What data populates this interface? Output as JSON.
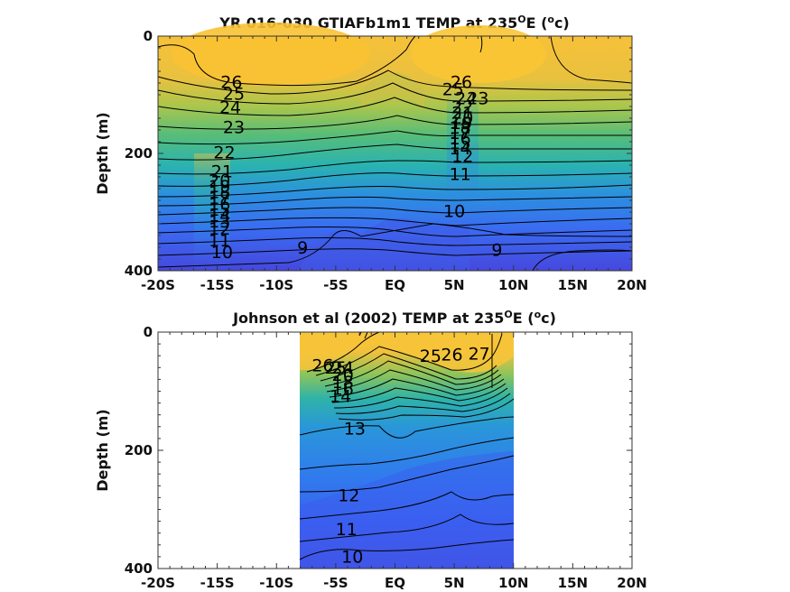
{
  "chart_data": [
    {
      "type": "contour",
      "title": "YR 016-030 GTIAFb1m1 TEMP at 235",
      "title_sup": "O",
      "title_mid": "E (",
      "title_unit_sup": "o",
      "title_end": "c)",
      "ylabel": "Depth (m)",
      "xlim": [
        -20,
        20
      ],
      "ylim": [
        0,
        400
      ],
      "y_reversed": true,
      "x_ticks": [
        -20,
        -15,
        -10,
        -5,
        0,
        5,
        10,
        15,
        20
      ],
      "x_tick_labels": [
        "-20S",
        "-15S",
        "-10S",
        "-5S",
        "EQ",
        "5N",
        "10N",
        "15N",
        "20N"
      ],
      "y_ticks": [
        0,
        200,
        400
      ],
      "y_tick_labels": [
        "0",
        "200",
        "400"
      ],
      "data_extent_x": [
        -20,
        20
      ],
      "contour_labels": [
        {
          "x": -13.8,
          "y": 80,
          "text": "26"
        },
        {
          "x": -13.6,
          "y": 100,
          "text": "25"
        },
        {
          "x": -13.9,
          "y": 123,
          "text": "24"
        },
        {
          "x": -13.6,
          "y": 157,
          "text": "23"
        },
        {
          "x": -14.4,
          "y": 200,
          "text": "22"
        },
        {
          "x": -14.6,
          "y": 232,
          "text": "21"
        },
        {
          "x": -14.8,
          "y": 248,
          "text": "20"
        },
        {
          "x": -14.8,
          "y": 258,
          "text": "19"
        },
        {
          "x": -14.8,
          "y": 268,
          "text": "18"
        },
        {
          "x": -14.8,
          "y": 278,
          "text": "17"
        },
        {
          "x": -14.8,
          "y": 288,
          "text": "16"
        },
        {
          "x": -14.8,
          "y": 298,
          "text": "15"
        },
        {
          "x": -14.8,
          "y": 308,
          "text": "14"
        },
        {
          "x": -14.8,
          "y": 318,
          "text": "13"
        },
        {
          "x": -14.8,
          "y": 330,
          "text": "12"
        },
        {
          "x": -14.8,
          "y": 350,
          "text": "11"
        },
        {
          "x": -14.6,
          "y": 370,
          "text": "10"
        },
        {
          "x": -7.8,
          "y": 362,
          "text": "9"
        },
        {
          "x": 5.6,
          "y": 80,
          "text": "26"
        },
        {
          "x": 4.9,
          "y": 92,
          "text": "25"
        },
        {
          "x": 6.0,
          "y": 108,
          "text": "24"
        },
        {
          "x": 7.0,
          "y": 108,
          "text": "23"
        },
        {
          "x": 5.7,
          "y": 122,
          "text": "22"
        },
        {
          "x": 5.7,
          "y": 132,
          "text": "21"
        },
        {
          "x": 5.7,
          "y": 141,
          "text": "20"
        },
        {
          "x": 5.6,
          "y": 150,
          "text": "19"
        },
        {
          "x": 5.5,
          "y": 158,
          "text": "18"
        },
        {
          "x": 5.5,
          "y": 167,
          "text": "17"
        },
        {
          "x": 5.5,
          "y": 176,
          "text": "16"
        },
        {
          "x": 5.5,
          "y": 184,
          "text": "15"
        },
        {
          "x": 5.5,
          "y": 193,
          "text": "14"
        },
        {
          "x": 5.7,
          "y": 206,
          "text": "12"
        },
        {
          "x": 5.5,
          "y": 237,
          "text": "11"
        },
        {
          "x": 5.0,
          "y": 300,
          "text": "10"
        },
        {
          "x": 8.6,
          "y": 366,
          "text": "9"
        }
      ]
    },
    {
      "type": "contour",
      "title": "Johnson et al (2002) TEMP at 235",
      "title_sup": "O",
      "title_mid": "E (",
      "title_unit_sup": "o",
      "title_end": "c)",
      "ylabel": "Depth (m)",
      "xlim": [
        -20,
        20
      ],
      "ylim": [
        0,
        400
      ],
      "y_reversed": true,
      "x_ticks": [
        -20,
        -15,
        -10,
        -5,
        0,
        5,
        10,
        15,
        20
      ],
      "x_tick_labels": [
        "-20S",
        "-15S",
        "-10S",
        "-5S",
        "EQ",
        "5N",
        "10N",
        "15N",
        "20N"
      ],
      "y_ticks": [
        0,
        200,
        400
      ],
      "y_tick_labels": [
        "0",
        "200",
        "400"
      ],
      "data_extent_x": [
        -8,
        10
      ],
      "contour_labels": [
        {
          "x": -6.1,
          "y": 58,
          "text": "26"
        },
        {
          "x": -5.0,
          "y": 62,
          "text": "25"
        },
        {
          "x": -4.4,
          "y": 62,
          "text": "24"
        },
        {
          "x": -4.4,
          "y": 74,
          "text": "20"
        },
        {
          "x": -4.4,
          "y": 86,
          "text": "18"
        },
        {
          "x": -4.4,
          "y": 98,
          "text": "16"
        },
        {
          "x": -4.6,
          "y": 110,
          "text": "14"
        },
        {
          "x": -3.4,
          "y": 165,
          "text": "13"
        },
        {
          "x": 3.0,
          "y": 42,
          "text": "25"
        },
        {
          "x": 4.8,
          "y": 40,
          "text": "26"
        },
        {
          "x": 7.1,
          "y": 38,
          "text": "27"
        },
        {
          "x": -3.9,
          "y": 278,
          "text": "12"
        },
        {
          "x": -4.1,
          "y": 335,
          "text": "11"
        },
        {
          "x": -3.6,
          "y": 382,
          "text": "10"
        }
      ]
    }
  ]
}
